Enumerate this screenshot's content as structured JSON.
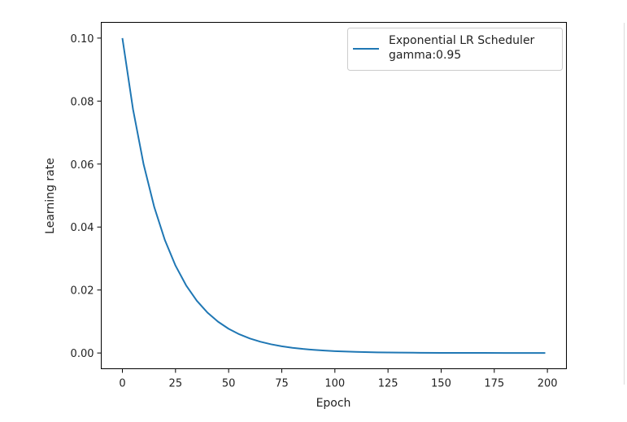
{
  "chart_data": {
    "type": "line",
    "xlabel": "Epoch",
    "ylabel": "Learning rate",
    "xlim": [
      -9.95,
      208.95
    ],
    "ylim": [
      -0.005,
      0.105
    ],
    "x_ticks": [
      0,
      25,
      50,
      75,
      100,
      125,
      150,
      175,
      200
    ],
    "x_tick_labels": [
      "0",
      "25",
      "50",
      "75",
      "100",
      "125",
      "150",
      "175",
      "200"
    ],
    "y_ticks": [
      0.0,
      0.02,
      0.04,
      0.06,
      0.08,
      0.1
    ],
    "y_tick_labels": [
      "0.00",
      "0.02",
      "0.04",
      "0.06",
      "0.08",
      "0.10"
    ],
    "grid": false,
    "legend_position": "top-right",
    "legend": [
      "Exponential LR Scheduler",
      "gamma:0.95"
    ],
    "series": [
      {
        "name": "Exponential LR Scheduler gamma:0.95",
        "color": "#1f77b4",
        "x": [
          0,
          5,
          10,
          15,
          20,
          25,
          30,
          35,
          40,
          45,
          50,
          55,
          60,
          65,
          70,
          75,
          80,
          85,
          90,
          95,
          100,
          110,
          120,
          130,
          140,
          150,
          160,
          170,
          180,
          190,
          199
        ],
        "y": [
          0.1,
          0.07738,
          0.05987,
          0.04633,
          0.03585,
          0.02774,
          0.02146,
          0.01661,
          0.01285,
          0.00994,
          0.00769,
          0.00595,
          0.00461,
          0.00357,
          0.00276,
          0.00213,
          0.00165,
          0.00128,
          0.00099,
          0.00077,
          0.00059,
          0.00036,
          0.00021,
          0.00013,
          8e-05,
          5e-05,
          3e-05,
          2e-05,
          1e-05,
          1e-05,
          0.0
        ]
      }
    ]
  }
}
